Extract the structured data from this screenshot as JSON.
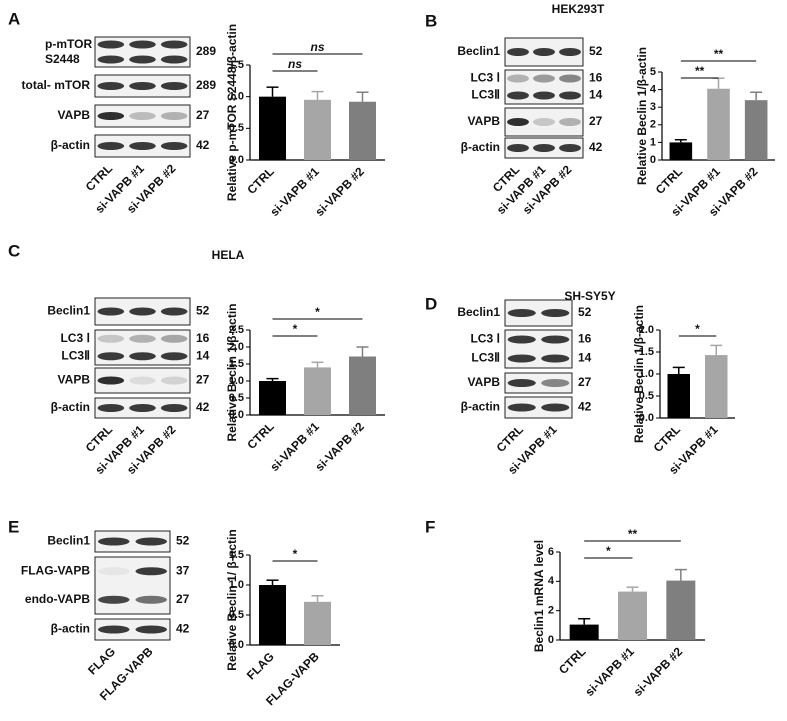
{
  "chart_data": [
    {
      "type": "bar",
      "panel": "A",
      "blot": {
        "rows": [
          {
            "labels": [
              "p-mTOR",
              "S2448"
            ],
            "kda": [
              289
            ]
          },
          {
            "labels": [
              "total- mTOR"
            ],
            "kda": [
              289
            ]
          },
          {
            "labels": [
              "VAPB"
            ],
            "kda": [
              27
            ]
          },
          {
            "labels": [
              "β-actin"
            ],
            "kda": [
              42
            ]
          }
        ],
        "lanes": [
          "CTRL",
          "si-VAPB #1",
          "si-VAPB #2"
        ]
      },
      "ylabel": "Relative p-mTOR S2448/β-actin",
      "categories": [
        "CTRL",
        "si-VAPB #1",
        "si-VAPB #2"
      ],
      "values": [
        1.0,
        0.95,
        0.92
      ],
      "errors": [
        0.15,
        0.13,
        0.15
      ],
      "colors": [
        "#000000",
        "#a6a6a6",
        "#7f7f7f"
      ],
      "ylim": [
        0,
        1.5
      ],
      "yticks": [
        {
          "value": 0,
          "label": "0.0"
        },
        {
          "value": 0.5,
          "label": "0.5"
        },
        {
          "value": 1,
          "label": "1.0"
        },
        {
          "value": 1.5,
          "label": "1.5"
        }
      ],
      "comparisons": [
        {
          "label": "ns",
          "between": [
            0,
            1
          ]
        },
        {
          "label": "ns",
          "between": [
            0,
            2
          ]
        }
      ]
    },
    {
      "type": "bar",
      "panel": "B",
      "title": "HEK293T",
      "blot": {
        "rows": [
          {
            "labels": [
              "Beclin1"
            ],
            "kda": [
              52
            ]
          },
          {
            "labels": [
              "LC3 Ⅰ",
              "LC3Ⅱ"
            ],
            "kda": [
              16,
              14
            ]
          },
          {
            "labels": [
              "VAPB"
            ],
            "kda": [
              27
            ]
          },
          {
            "labels": [
              "β-actin"
            ],
            "kda": [
              42
            ]
          }
        ],
        "lanes": [
          "CTRL",
          "si-VAPB #1",
          "si-VAPB #2"
        ]
      },
      "ylabel": "Relative Beclin 1/β-actin",
      "categories": [
        "CTRL",
        "si-VAPB #1",
        "si-VAPB #2"
      ],
      "values": [
        1.0,
        4.05,
        3.4
      ],
      "errors": [
        0.15,
        0.6,
        0.45
      ],
      "colors": [
        "#000000",
        "#a6a6a6",
        "#7f7f7f"
      ],
      "ylim": [
        0,
        5
      ],
      "yticks": [
        0,
        1,
        2,
        3,
        4,
        5
      ],
      "comparisons": [
        {
          "label": "**",
          "between": [
            0,
            1
          ]
        },
        {
          "label": "**",
          "between": [
            0,
            2
          ]
        }
      ]
    },
    {
      "type": "bar",
      "panel": "C",
      "title": "HELA",
      "blot": {
        "rows": [
          {
            "labels": [
              "Beclin1"
            ],
            "kda": [
              52
            ]
          },
          {
            "labels": [
              "LC3 Ⅰ",
              "LC3Ⅱ"
            ],
            "kda": [
              16,
              14
            ]
          },
          {
            "labels": [
              "VAPB"
            ],
            "kda": [
              27
            ]
          },
          {
            "labels": [
              "β-actin"
            ],
            "kda": [
              42
            ]
          }
        ],
        "lanes": [
          "CTRL",
          "si-VAPB #1",
          "si-VAPB #2"
        ]
      },
      "ylabel": "Relative Beclin 1/β-actin",
      "categories": [
        "CTRL",
        "si-VAPB #1",
        "si-VAPB #2"
      ],
      "values": [
        1.0,
        1.4,
        1.72
      ],
      "errors": [
        0.07,
        0.15,
        0.28
      ],
      "colors": [
        "#000000",
        "#a6a6a6",
        "#7f7f7f"
      ],
      "ylim": [
        0,
        2.5
      ],
      "yticks": [
        {
          "value": 0,
          "label": "0.0"
        },
        {
          "value": 0.5,
          "label": "0.5"
        },
        {
          "value": 1,
          "label": "1.0"
        },
        {
          "value": 1.5,
          "label": "1.5"
        },
        {
          "value": 2,
          "label": "2.0"
        },
        {
          "value": 2.5,
          "label": "2.5"
        }
      ],
      "comparisons": [
        {
          "label": "*",
          "between": [
            0,
            1
          ]
        },
        {
          "label": "*",
          "between": [
            0,
            2
          ]
        }
      ]
    },
    {
      "type": "bar",
      "panel": "D",
      "title": "SH-SY5Y",
      "blot": {
        "rows": [
          {
            "labels": [
              "Beclin1"
            ],
            "kda": [
              52
            ]
          },
          {
            "labels": [
              "LC3 Ⅰ",
              "LC3Ⅱ"
            ],
            "kda": [
              16,
              14
            ]
          },
          {
            "labels": [
              "VAPB"
            ],
            "kda": [
              27
            ]
          },
          {
            "labels": [
              "β-actin"
            ],
            "kda": [
              42
            ]
          }
        ],
        "lanes": [
          "CTRL",
          "si-VAPB #1"
        ]
      },
      "ylabel": "Relative Beclin 1/β-actin",
      "categories": [
        "CTRL",
        "si-VAPB #1"
      ],
      "values": [
        1.0,
        1.43
      ],
      "errors": [
        0.15,
        0.22
      ],
      "colors": [
        "#000000",
        "#a6a6a6"
      ],
      "ylim": [
        0,
        2
      ],
      "yticks": [
        {
          "value": 0,
          "label": "0.0"
        },
        {
          "value": 0.5,
          "label": "0.5"
        },
        {
          "value": 1,
          "label": "1.0"
        },
        {
          "value": 1.5,
          "label": "1.5"
        },
        {
          "value": 2,
          "label": "2.0"
        }
      ],
      "comparisons": [
        {
          "label": "*",
          "between": [
            0,
            1
          ]
        }
      ]
    },
    {
      "type": "bar",
      "panel": "E",
      "blot": {
        "rows": [
          {
            "labels": [
              "Beclin1"
            ],
            "kda": [
              52
            ]
          },
          {
            "labels": [
              "FLAG-VAPB",
              "endo-VAPB"
            ],
            "kda": [
              37,
              27
            ]
          },
          {
            "labels": [
              "β-actin"
            ],
            "kda": [
              42
            ]
          }
        ],
        "lanes": [
          "FLAG",
          "FLAG-VAPB"
        ]
      },
      "ylabel": "Relative Beclin 1/ β-actin",
      "categories": [
        "FLAG",
        "FLAG-VAPB"
      ],
      "values": [
        1.0,
        0.72
      ],
      "errors": [
        0.08,
        0.1
      ],
      "colors": [
        "#000000",
        "#a6a6a6"
      ],
      "ylim": [
        0,
        1.5
      ],
      "yticks": [
        {
          "value": 0,
          "label": "0.0"
        },
        {
          "value": 0.5,
          "label": "0.5"
        },
        {
          "value": 1,
          "label": "1.0"
        },
        {
          "value": 1.5,
          "label": "1.5"
        }
      ],
      "comparisons": [
        {
          "label": "*",
          "between": [
            0,
            1
          ]
        }
      ]
    },
    {
      "type": "bar",
      "panel": "F",
      "ylabel": "Beclin1 mRNA level",
      "categories": [
        "CTRL",
        "si-VAPB #1",
        "si-VAPB #2"
      ],
      "values": [
        1.05,
        3.3,
        4.05
      ],
      "errors": [
        0.4,
        0.3,
        0.75
      ],
      "colors": [
        "#000000",
        "#a6a6a6",
        "#7f7f7f"
      ],
      "ylim": [
        0,
        6
      ],
      "yticks": [
        0,
        2,
        4,
        6
      ],
      "comparisons": [
        {
          "label": "*",
          "between": [
            0,
            1
          ]
        },
        {
          "label": "**",
          "between": [
            0,
            2
          ]
        }
      ]
    }
  ]
}
